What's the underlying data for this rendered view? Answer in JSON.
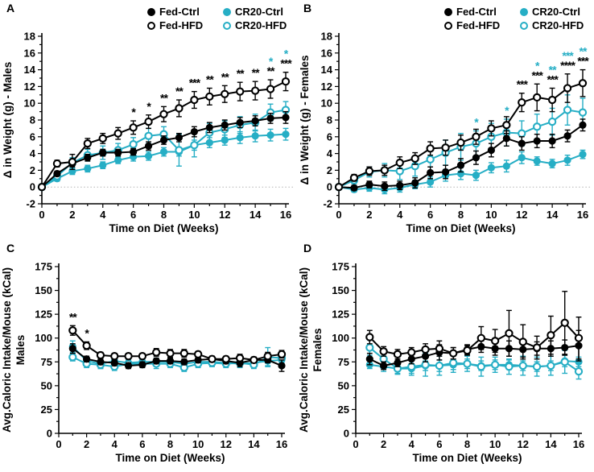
{
  "colors": {
    "black": "#000000",
    "cyan": "#26aec5",
    "zero_line": "#b3b3b3",
    "background": "#ffffff"
  },
  "panels": {
    "a_letter": "A",
    "b_letter": "B",
    "c_letter": "C",
    "d_letter": "D"
  },
  "legend": {
    "items": [
      {
        "label": "Fed-Ctrl",
        "marker": "filled",
        "color": "black"
      },
      {
        "label": "Fed-HFD",
        "marker": "open",
        "color": "black"
      },
      {
        "label": "CR20-Ctrl",
        "marker": "filled",
        "color": "cyan"
      },
      {
        "label": "CR20-HFD",
        "marker": "open",
        "color": "cyan"
      }
    ]
  },
  "chart_data": [
    {
      "panel": "A",
      "type": "line",
      "xlabel": "Time on Diet (Weeks)",
      "ylabel": "Δ in Weight (g) - Males",
      "xlim": [
        0,
        16
      ],
      "ylim": [
        -2,
        18
      ],
      "xticks": [
        0,
        2,
        4,
        6,
        8,
        10,
        12,
        14,
        16
      ],
      "yticks": [
        -2,
        0,
        2,
        4,
        6,
        8,
        10,
        12,
        14,
        16,
        18
      ],
      "zero_line": true,
      "legend_position": "top",
      "x": [
        0,
        1,
        2,
        3,
        4,
        5,
        6,
        7,
        8,
        9,
        10,
        11,
        12,
        13,
        14,
        15,
        16
      ],
      "series": [
        {
          "name": "Fed-Ctrl",
          "marker": "filled",
          "color": "black",
          "values": [
            0,
            1.6,
            2.8,
            3.5,
            4.1,
            4.1,
            4.2,
            4.9,
            5.6,
            5.9,
            6.6,
            7.1,
            7.4,
            7.7,
            7.9,
            8.2,
            8.3
          ],
          "err": [
            0,
            0.3,
            0.4,
            0.4,
            0.4,
            0.4,
            0.4,
            0.5,
            0.5,
            0.5,
            0.6,
            0.6,
            0.6,
            0.6,
            0.6,
            0.6,
            0.7
          ]
        },
        {
          "name": "Fed-HFD",
          "marker": "open",
          "color": "black",
          "values": [
            0,
            2.8,
            3.0,
            5.2,
            5.8,
            6.4,
            7.1,
            7.8,
            8.7,
            9.4,
            10.4,
            10.8,
            11.1,
            11.4,
            11.5,
            11.7,
            12.6
          ],
          "err": [
            0,
            0.4,
            0.9,
            0.6,
            0.6,
            0.7,
            0.8,
            0.8,
            0.9,
            1.0,
            1.0,
            1.0,
            1.0,
            1.1,
            1.1,
            1.1,
            1.1
          ]
        },
        {
          "name": "CR20-Ctrl",
          "marker": "filled",
          "color": "cyan",
          "values": [
            0,
            1.0,
            1.9,
            2.2,
            2.6,
            3.2,
            3.6,
            3.7,
            4.2,
            4.2,
            5.0,
            5.3,
            5.6,
            5.9,
            6.1,
            6.2,
            6.3
          ],
          "err": [
            0,
            0.3,
            0.4,
            0.4,
            0.4,
            0.4,
            0.5,
            0.5,
            0.5,
            0.5,
            0.6,
            0.6,
            0.6,
            0.7,
            0.7,
            0.7,
            0.7
          ]
        },
        {
          "name": "CR20-HFD",
          "marker": "open",
          "color": "cyan",
          "values": [
            0,
            1.3,
            2.9,
            3.8,
            4.1,
            4.4,
            5.1,
            6.1,
            6.3,
            4.4,
            5.0,
            6.5,
            6.9,
            7.4,
            7.7,
            8.9,
            9.2
          ],
          "err": [
            0,
            0.4,
            0.6,
            0.7,
            0.8,
            0.8,
            0.8,
            0.9,
            0.9,
            1.9,
            1.4,
            1.1,
            1.0,
            1.0,
            1.0,
            1.0,
            1.0
          ]
        }
      ],
      "significance": [
        {
          "x": 6,
          "black": "*"
        },
        {
          "x": 7,
          "black": "*"
        },
        {
          "x": 8,
          "black": "**"
        },
        {
          "x": 9,
          "black": "**"
        },
        {
          "x": 10,
          "black": "***"
        },
        {
          "x": 11,
          "black": "**"
        },
        {
          "x": 12,
          "black": "**"
        },
        {
          "x": 13,
          "black": "**"
        },
        {
          "x": 14,
          "black": "**"
        },
        {
          "x": 15,
          "black": "**",
          "cyan": "*"
        },
        {
          "x": 16,
          "black": "***",
          "cyan": "*"
        }
      ]
    },
    {
      "panel": "B",
      "type": "line",
      "xlabel": "Time on Diet (Weeks)",
      "ylabel": "Δ in Weight (g) - Females",
      "xlim": [
        0,
        16
      ],
      "ylim": [
        -2,
        18
      ],
      "xticks": [
        0,
        2,
        4,
        6,
        8,
        10,
        12,
        14,
        16
      ],
      "yticks": [
        -2,
        0,
        2,
        4,
        6,
        8,
        10,
        12,
        14,
        16,
        18
      ],
      "zero_line": true,
      "legend_position": "top",
      "x": [
        0,
        1,
        2,
        3,
        4,
        5,
        6,
        7,
        8,
        9,
        10,
        11,
        12,
        13,
        14,
        15,
        16
      ],
      "series": [
        {
          "name": "Fed-Ctrl",
          "marker": "filled",
          "color": "black",
          "values": [
            0,
            -0.1,
            0.3,
            0.1,
            0.2,
            0.5,
            1.7,
            1.8,
            2.6,
            3.5,
            4.4,
            5.8,
            5.2,
            5.5,
            5.5,
            6.1,
            7.4
          ],
          "err": [
            0,
            0.3,
            0.4,
            0.5,
            0.5,
            0.6,
            0.7,
            0.8,
            0.8,
            0.8,
            0.8,
            0.9,
            0.8,
            0.8,
            0.8,
            0.7,
            0.7
          ]
        },
        {
          "name": "Fed-HFD",
          "marker": "open",
          "color": "black",
          "values": [
            0,
            1.1,
            1.9,
            2.0,
            2.9,
            3.4,
            4.6,
            4.7,
            5.3,
            6.0,
            7.0,
            7.4,
            10.1,
            10.7,
            10.4,
            11.8,
            12.4
          ],
          "err": [
            0,
            0.4,
            0.5,
            0.6,
            0.7,
            0.7,
            0.8,
            0.9,
            0.9,
            0.9,
            0.9,
            1.0,
            1.1,
            1.6,
            1.4,
            1.7,
            1.6
          ]
        },
        {
          "name": "CR20-Ctrl",
          "marker": "filled",
          "color": "cyan",
          "values": [
            0,
            -0.3,
            -0.1,
            -0.3,
            -0.1,
            0.3,
            0.6,
            1.4,
            1.6,
            1.4,
            2.3,
            2.5,
            3.5,
            3.1,
            2.8,
            3.2,
            3.9
          ],
          "err": [
            0,
            0.3,
            0.4,
            0.5,
            0.5,
            0.5,
            0.6,
            0.7,
            0.7,
            0.6,
            0.6,
            0.7,
            0.7,
            0.5,
            0.5,
            0.6,
            0.5
          ]
        },
        {
          "name": "CR20-HFD",
          "marker": "open",
          "color": "cyan",
          "values": [
            0,
            0.8,
            1.8,
            2.0,
            1.9,
            2.5,
            3.3,
            4.1,
            4.8,
            5.2,
            6.0,
            6.5,
            6.4,
            7.2,
            7.8,
            9.2,
            8.9
          ],
          "err": [
            0,
            0.4,
            0.6,
            0.8,
            1.0,
            1.2,
            1.4,
            1.5,
            1.6,
            1.5,
            1.6,
            1.6,
            1.5,
            1.5,
            1.6,
            1.8,
            1.7
          ]
        }
      ],
      "significance": [
        {
          "x": 9,
          "cyan": "*"
        },
        {
          "x": 11,
          "cyan": "*"
        },
        {
          "x": 12,
          "black": "***"
        },
        {
          "x": 13,
          "black": "***",
          "cyan": "*"
        },
        {
          "x": 14,
          "black": "***",
          "cyan": "**"
        },
        {
          "x": 15,
          "black": "****",
          "cyan": "***"
        },
        {
          "x": 16,
          "black": "***",
          "cyan": "**"
        }
      ]
    },
    {
      "panel": "C",
      "type": "line",
      "xlabel": "Time on Diet (Weeks)",
      "ylabel": "Avg.Caloric Intake/Mouse (kCal)",
      "ylabel2": "Males",
      "xlim": [
        0,
        16
      ],
      "ylim": [
        0,
        175
      ],
      "xticks": [
        0,
        2,
        4,
        6,
        8,
        10,
        12,
        14,
        16
      ],
      "yticks": [
        0,
        25,
        50,
        75,
        100,
        125,
        150,
        175
      ],
      "zero_line": false,
      "legend_position": "none",
      "x": [
        1,
        2,
        3,
        4,
        5,
        6,
        7,
        8,
        9,
        10,
        11,
        12,
        13,
        14,
        15,
        16
      ],
      "series": [
        {
          "name": "Fed-Ctrl",
          "marker": "filled",
          "color": "black",
          "values": [
            89,
            78,
            75,
            74,
            71,
            72,
            76,
            76,
            75,
            77,
            78,
            76,
            74,
            77,
            77,
            71
          ],
          "err": [
            5,
            3,
            3,
            3,
            3,
            3,
            3,
            3,
            3,
            3,
            3,
            3,
            4,
            3,
            3,
            6
          ]
        },
        {
          "name": "Fed-HFD",
          "marker": "open",
          "color": "black",
          "values": [
            108,
            92,
            82,
            81,
            81,
            81,
            85,
            84,
            84,
            83,
            78,
            78,
            79,
            77,
            81,
            83
          ],
          "err": [
            5,
            4,
            3,
            3,
            3,
            3,
            4,
            4,
            4,
            3,
            3,
            3,
            4,
            3,
            4,
            4
          ]
        },
        {
          "name": "CR20-Ctrl",
          "marker": "filled",
          "color": "cyan",
          "values": [
            91,
            76,
            73,
            76,
            74,
            75,
            75,
            75,
            73,
            75,
            75,
            74,
            73,
            74,
            76,
            77
          ],
          "err": [
            6,
            4,
            5,
            4,
            4,
            4,
            4,
            4,
            4,
            4,
            4,
            4,
            4,
            4,
            5,
            4
          ]
        },
        {
          "name": "CR20-HFD",
          "marker": "open",
          "color": "cyan",
          "values": [
            80,
            73,
            72,
            70,
            73,
            73,
            73,
            73,
            69,
            73,
            74,
            73,
            74,
            72,
            80,
            79
          ],
          "err": [
            4,
            4,
            4,
            4,
            4,
            4,
            5,
            4,
            4,
            4,
            4,
            4,
            4,
            4,
            10,
            5
          ]
        }
      ],
      "significance": [
        {
          "x": 1,
          "black": "**"
        },
        {
          "x": 2,
          "black": "*"
        }
      ]
    },
    {
      "panel": "D",
      "type": "line",
      "xlabel": "Time on Diet (Weeks)",
      "ylabel": "Avg.Caloric Intake/Mouse (kCal)",
      "ylabel2": "Females",
      "xlim": [
        0,
        16
      ],
      "ylim": [
        0,
        175
      ],
      "xticks": [
        0,
        2,
        4,
        6,
        8,
        10,
        12,
        14,
        16
      ],
      "yticks": [
        0,
        25,
        50,
        75,
        100,
        125,
        150,
        175
      ],
      "zero_line": false,
      "legend_position": "none",
      "x": [
        1,
        2,
        3,
        4,
        5,
        6,
        7,
        8,
        9,
        10,
        11,
        12,
        13,
        14,
        15,
        16
      ],
      "series": [
        {
          "name": "Fed-Ctrl",
          "marker": "filled",
          "color": "black",
          "values": [
            78,
            71,
            74,
            78,
            81,
            85,
            84,
            88,
            91,
            89,
            89,
            88,
            89,
            89,
            90,
            92
          ],
          "err": [
            6,
            4,
            4,
            5,
            6,
            8,
            6,
            5,
            6,
            7,
            8,
            8,
            7,
            8,
            8,
            16
          ]
        },
        {
          "name": "Fed-HFD",
          "marker": "open",
          "color": "black",
          "values": [
            101,
            86,
            83,
            85,
            88,
            89,
            84,
            87,
            100,
            97,
            105,
            96,
            90,
            103,
            116,
            100
          ],
          "err": [
            7,
            5,
            5,
            5,
            6,
            8,
            6,
            5,
            12,
            12,
            24,
            18,
            12,
            20,
            33,
            22
          ]
        },
        {
          "name": "CR20-Ctrl",
          "marker": "filled",
          "color": "cyan",
          "values": [
            72,
            70,
            68,
            68,
            71,
            71,
            72,
            73,
            71,
            72,
            72,
            71,
            70,
            71,
            76,
            75
          ],
          "err": [
            4,
            5,
            5,
            5,
            5,
            6,
            5,
            5,
            5,
            5,
            5,
            5,
            5,
            5,
            6,
            5
          ]
        },
        {
          "name": "CR20-HFD",
          "marker": "open",
          "color": "cyan",
          "values": [
            90,
            78,
            68,
            70,
            72,
            71,
            74,
            73,
            70,
            72,
            70,
            71,
            70,
            71,
            75,
            65
          ],
          "err": [
            8,
            6,
            6,
            9,
            12,
            10,
            10,
            8,
            10,
            8,
            8,
            10,
            10,
            10,
            12,
            8
          ]
        }
      ],
      "significance": []
    }
  ]
}
